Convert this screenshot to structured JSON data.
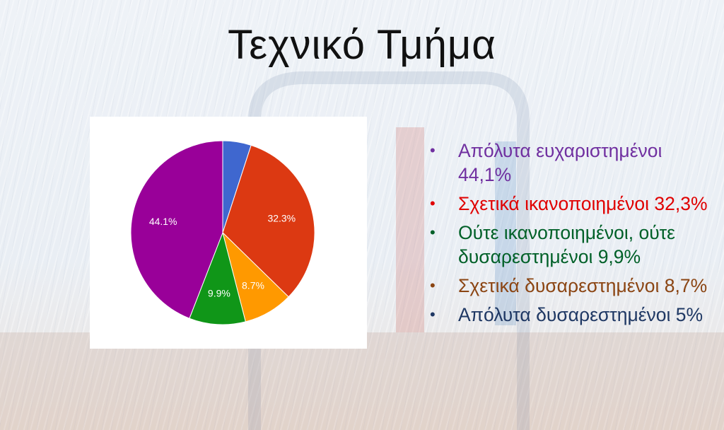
{
  "slide": {
    "title": "Τεχνικό Τμήμα"
  },
  "chart_data": {
    "type": "pie",
    "title": "",
    "slices": [
      {
        "label": "",
        "value": 5.0,
        "color": "#3f67cf",
        "data_label": ""
      },
      {
        "label": "",
        "value": 32.3,
        "color": "#dc3912",
        "data_label": "32.3%"
      },
      {
        "label": "",
        "value": 8.7,
        "color": "#ff9900",
        "data_label": "8.7%"
      },
      {
        "label": "",
        "value": 9.9,
        "color": "#109618",
        "data_label": "9.9%"
      },
      {
        "label": "",
        "value": 44.1,
        "color": "#990099",
        "data_label": "44.1%"
      }
    ]
  },
  "legend": {
    "items": [
      {
        "text": "Απόλυτα ευχαριστημένοι 44,1%",
        "color": "#7030a0"
      },
      {
        "text": "Σχετικά ικανοποιημένοι 32,3%",
        "color": "#e00000"
      },
      {
        "text": "Ούτε ικανοποιημένοι, ούτε δυσαρεστημένοι 9,9%",
        "color": "#006028"
      },
      {
        "text": "Σχετικά δυσαρεστημένοι 8,7%",
        "color": "#8b4513"
      },
      {
        "text": "Απόλυτα δυσαρεστημένοι 5%",
        "color": "#1f3864"
      }
    ]
  }
}
